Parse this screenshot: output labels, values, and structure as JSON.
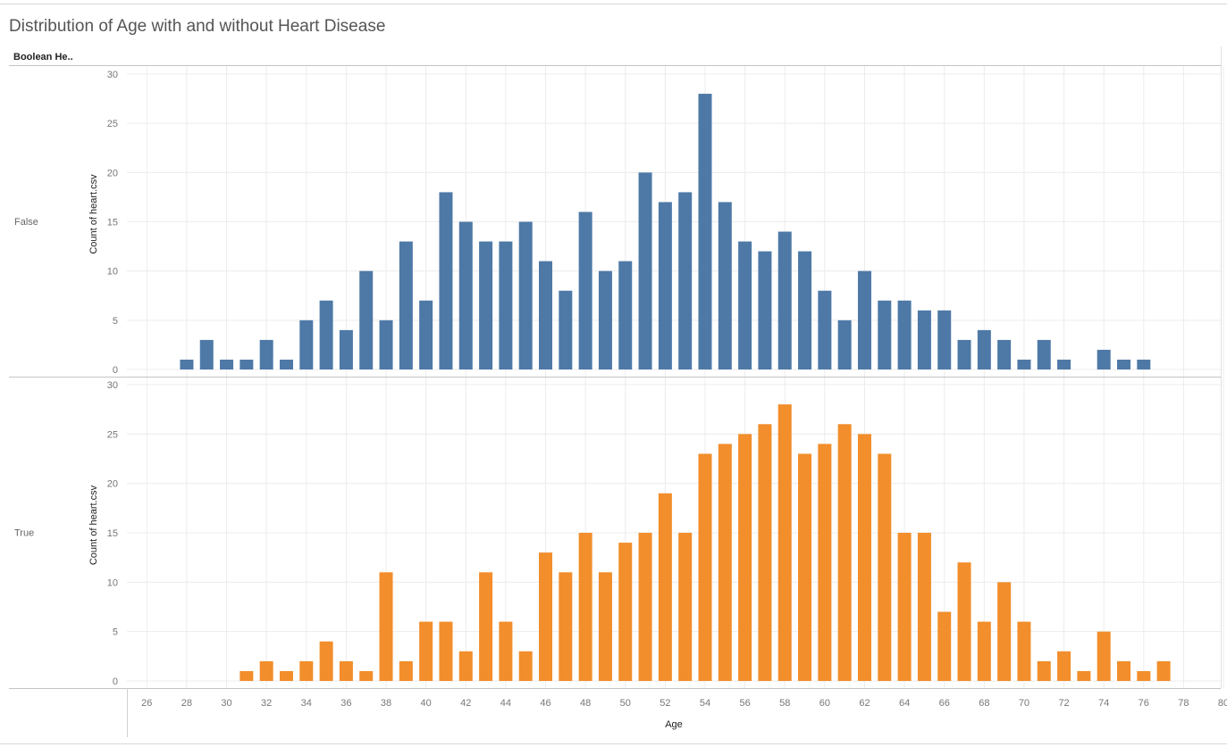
{
  "title": "Distribution of Age with and without Heart Disease",
  "row_header": "Boolean He..",
  "colors": {
    "false_bar": "#4e79a7",
    "true_bar": "#f28e2b",
    "grid": "#ececec",
    "axis": "#c4c4c4",
    "tick_text": "#777777"
  },
  "chart_data": {
    "type": "bar",
    "xlabel": "Age",
    "ylabel": "Count of heart.csv",
    "xlim": [
      25,
      80
    ],
    "x_ticks": [
      26,
      28,
      30,
      32,
      34,
      36,
      38,
      40,
      42,
      44,
      46,
      48,
      50,
      52,
      54,
      56,
      58,
      60,
      62,
      64,
      66,
      68,
      70,
      72,
      74,
      76,
      78,
      80
    ],
    "ylim": [
      0,
      30
    ],
    "y_ticks": [
      0,
      5,
      10,
      15,
      20,
      25,
      30
    ],
    "grid": true,
    "series": [
      {
        "name": "False",
        "x": [
          28,
          29,
          30,
          31,
          32,
          33,
          34,
          35,
          36,
          37,
          38,
          39,
          40,
          41,
          42,
          43,
          44,
          45,
          46,
          47,
          48,
          49,
          50,
          51,
          52,
          53,
          54,
          55,
          56,
          57,
          58,
          59,
          60,
          61,
          62,
          63,
          64,
          65,
          66,
          67,
          68,
          69,
          70,
          71,
          72,
          74,
          75,
          76
        ],
        "values": [
          1,
          3,
          1,
          1,
          3,
          1,
          5,
          7,
          4,
          10,
          5,
          13,
          7,
          18,
          15,
          13,
          13,
          15,
          11,
          8,
          16,
          10,
          11,
          20,
          17,
          18,
          28,
          17,
          13,
          12,
          14,
          12,
          8,
          5,
          10,
          7,
          7,
          6,
          6,
          3,
          4,
          3,
          1,
          3,
          1,
          2,
          1,
          1
        ]
      },
      {
        "name": "True",
        "x": [
          31,
          32,
          33,
          34,
          35,
          36,
          37,
          38,
          39,
          40,
          41,
          42,
          43,
          44,
          45,
          46,
          47,
          48,
          49,
          50,
          51,
          52,
          53,
          54,
          55,
          56,
          57,
          58,
          59,
          60,
          61,
          62,
          63,
          64,
          65,
          66,
          67,
          68,
          69,
          70,
          71,
          72,
          73,
          74,
          75,
          76,
          77
        ],
        "values": [
          1,
          2,
          1,
          2,
          4,
          2,
          1,
          11,
          2,
          6,
          6,
          3,
          11,
          6,
          3,
          13,
          11,
          15,
          11,
          14,
          15,
          19,
          15,
          23,
          24,
          25,
          26,
          28,
          23,
          24,
          26,
          25,
          23,
          15,
          15,
          7,
          12,
          6,
          10,
          6,
          2,
          3,
          1,
          5,
          2,
          1,
          2
        ]
      }
    ]
  }
}
